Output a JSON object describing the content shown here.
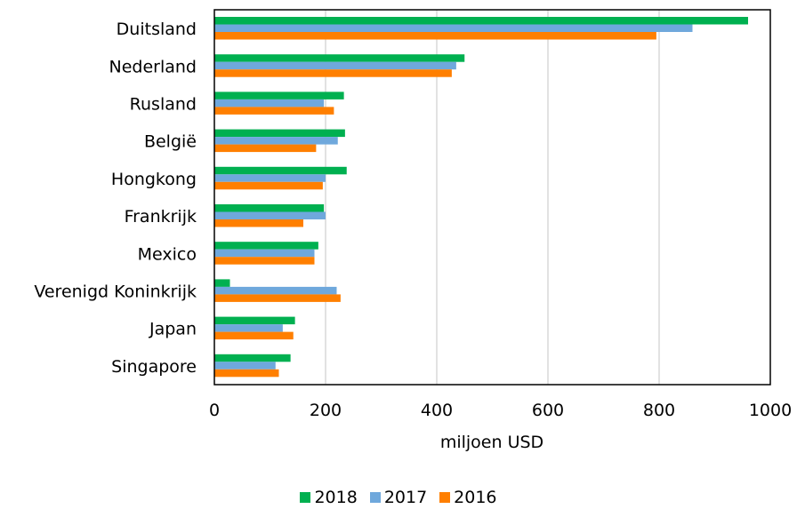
{
  "chart_data": {
    "type": "bar",
    "orientation": "horizontal",
    "categories": [
      "Duitsland",
      "Nederland",
      "Rusland",
      "België",
      "Hongkong",
      "Frankrijk",
      "Mexico",
      "Verenigd Koninkrijk",
      "Japan",
      "Singapore"
    ],
    "series": [
      {
        "name": "2018",
        "color": "#00b050",
        "values": [
          960,
          450,
          233,
          235,
          238,
          197,
          187,
          28,
          145,
          137
        ]
      },
      {
        "name": "2017",
        "color": "#6fa8dc",
        "values": [
          860,
          435,
          197,
          222,
          200,
          200,
          180,
          220,
          123,
          110
        ]
      },
      {
        "name": "2016",
        "color": "#ff7f00",
        "values": [
          795,
          427,
          215,
          183,
          195,
          160,
          180,
          227,
          142,
          116
        ]
      }
    ],
    "x_ticks": [
      "0",
      "200",
      "400",
      "600",
      "800",
      "1000"
    ],
    "xlabel": "miljoen USD",
    "xlim": [
      0,
      1000
    ],
    "grid": true,
    "legend_position": "bottom"
  }
}
